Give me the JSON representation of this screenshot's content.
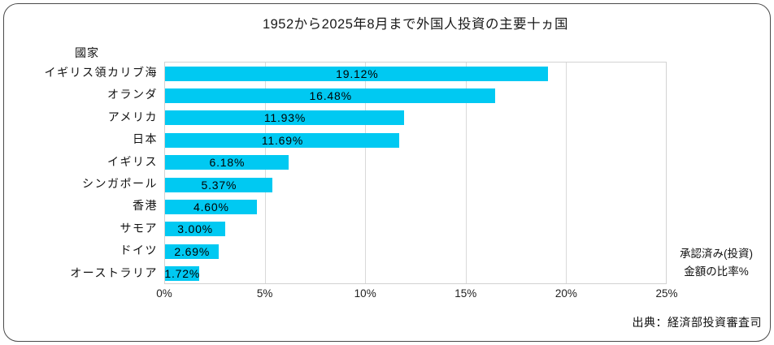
{
  "chart_data": {
    "type": "bar",
    "orientation": "horizontal",
    "title": "1952から2025年8月まで外国人投資の主要十ヵ国",
    "y_axis_title": "國家",
    "categories": [
      "イギリス領カリブ海",
      "オランダ",
      "アメリカ",
      "日本",
      "イギリス",
      "シンガポール",
      "香港",
      "サモア",
      "ドイツ",
      "オーストラリア"
    ],
    "values": [
      19.12,
      16.48,
      11.93,
      11.69,
      6.18,
      5.37,
      4.6,
      3.0,
      2.69,
      1.72
    ],
    "value_labels": [
      "19.12%",
      "16.48%",
      "11.93%",
      "11.69%",
      "6.18%",
      "5.37%",
      "4.60%",
      "3.00%",
      "2.69%",
      "1.72%"
    ],
    "xlim": [
      0,
      25
    ],
    "xtick_labels": [
      "0%",
      "5%",
      "10%",
      "15%",
      "20%",
      "25%"
    ],
    "grid": "vertical",
    "legend": "none",
    "x_axis_note": [
      "承認済み(投資)",
      "金額の比率%"
    ],
    "bar_color": "#00c9f2"
  },
  "colors": {
    "bar": "#00c9f2",
    "gridline": "#d9d9d9",
    "frame_border": "#4a4a4a",
    "text": "#000000"
  },
  "source_note": "出典：経済部投資審査司"
}
